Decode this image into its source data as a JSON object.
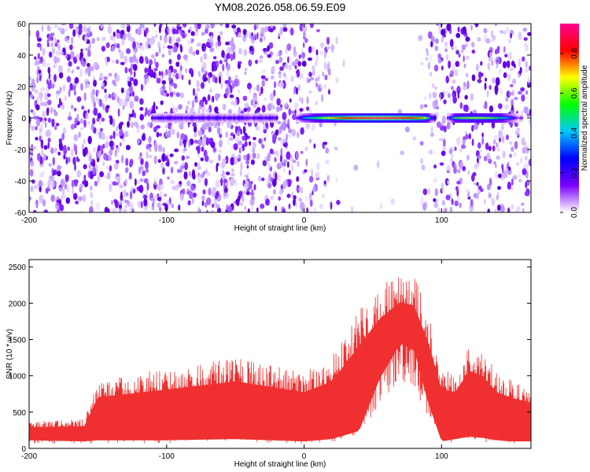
{
  "chart_data": [
    {
      "type": "heatmap",
      "title": "YM08.2026.058.06.59.E09",
      "xlabel": "Height of straight line (km)",
      "ylabel": "Frequency (Hz)",
      "xlim": [
        -200,
        165
      ],
      "ylim": [
        -60,
        60
      ],
      "xticks": [
        -200,
        -100,
        0,
        100
      ],
      "yticks": [
        60,
        40,
        20,
        0,
        -20,
        -40,
        -60
      ],
      "colorbar": {
        "label": "Normalized spectral amplitude",
        "range": [
          0.0,
          0.95
        ],
        "ticks": [
          "0.0",
          "0.2",
          "0.4",
          "0.6",
          "0.8"
        ],
        "colors": [
          "#ffffff",
          "#7b00ff",
          "#0000ff",
          "#00c8ff",
          "#00ff00",
          "#ffff00",
          "#ff0000",
          "#ff0090"
        ]
      },
      "features": [
        {
          "name": "noise band left",
          "x_range": [
            -200,
            0
          ],
          "freq_range": [
            -60,
            60
          ],
          "amplitude": 0.05
        },
        {
          "name": "quiet gap",
          "x_range": [
            20,
            85
          ],
          "freq_range": [
            -60,
            60
          ],
          "amplitude": 0.0
        },
        {
          "name": "noise band right",
          "x_range": [
            85,
            165
          ],
          "freq_range": [
            -60,
            60
          ],
          "amplitude": 0.04
        },
        {
          "name": "DC ridge weak",
          "x_range": [
            -110,
            -20
          ],
          "freq": 0,
          "amplitude": 0.12
        },
        {
          "name": "DC ridge main",
          "x_range": [
            -5,
            95
          ],
          "freq": 0,
          "peak_x": 55,
          "amplitude": 0.9
        },
        {
          "name": "DC ridge secondary",
          "x_range": [
            105,
            158
          ],
          "freq": 0,
          "peak_x": 125,
          "amplitude": 0.6
        }
      ]
    },
    {
      "type": "line",
      "xlabel": "Height of straight line (km)",
      "ylabel": "SNR (10 * v/v)",
      "xlim": [
        -200,
        165
      ],
      "ylim": [
        0,
        2600
      ],
      "xticks": [
        -200,
        -100,
        0,
        100
      ],
      "yticks": [
        0,
        500,
        1000,
        1500,
        2000,
        2500
      ],
      "series": [
        {
          "name": "SNR",
          "color": "#f03030",
          "envelope": {
            "x": [
              -200,
              -160,
              -150,
              -100,
              -50,
              0,
              20,
              40,
              55,
              70,
              80,
              90,
              100,
              110,
              120,
              130,
              140,
              150,
              165
            ],
            "upper": [
              380,
              400,
              950,
              1100,
              1250,
              1050,
              1250,
              1900,
              2250,
              2450,
              2400,
              1900,
              1100,
              1050,
              1450,
              1350,
              1050,
              950,
              850
            ],
            "lower": [
              70,
              60,
              70,
              70,
              80,
              60,
              80,
              150,
              600,
              900,
              850,
              400,
              60,
              80,
              100,
              90,
              70,
              60,
              60
            ]
          }
        }
      ]
    }
  ]
}
